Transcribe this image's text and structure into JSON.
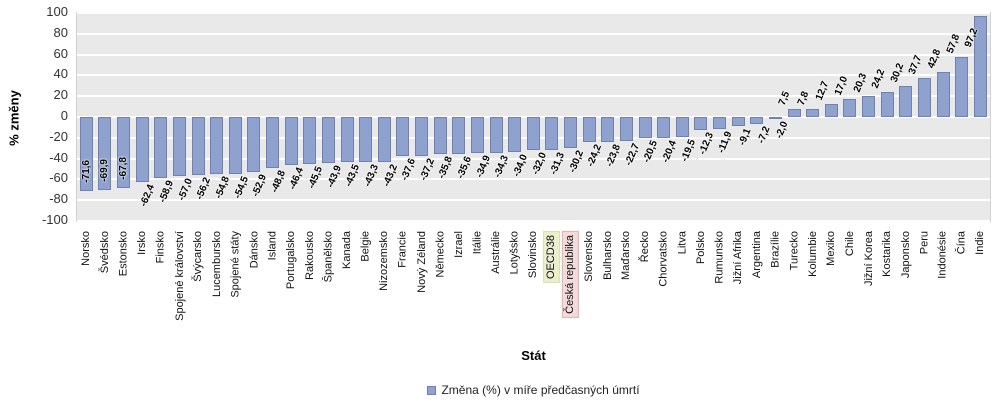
{
  "chart_data": {
    "type": "bar",
    "title": "",
    "xlabel": "Stát",
    "ylabel": "% změny",
    "ylim": [
      -100,
      100
    ],
    "yticks": [
      100,
      80,
      60,
      40,
      20,
      0,
      -20,
      -40,
      -60,
      -80,
      -100
    ],
    "grid": true,
    "legend": [
      "Změna (%) v míře předčasných úmrtí"
    ],
    "legend_position": "bottom",
    "categories": [
      "Norsko",
      "Švédsko",
      "Estonsko",
      "Irsko",
      "Finsko",
      "Spojené království",
      "Švýcarsko",
      "Lucembursko",
      "Spojené státy",
      "Dánsko",
      "Island",
      "Portugalsko",
      "Rakousko",
      "Španělsko",
      "Kanada",
      "Belgie",
      "Nizozemsko",
      "Francie",
      "Nový Zéland",
      "Německo",
      "Izrael",
      "Itálie",
      "Austrálie",
      "Lotyšsko",
      "Slovinsko",
      "OECD38",
      "Česká republika",
      "Slovensko",
      "Bulharsko",
      "Maďarsko",
      "Řecko",
      "Chorvatsko",
      "Litva",
      "Polsko",
      "Rumunsko",
      "Jižní Afrika",
      "Argentina",
      "Brazílie",
      "Turecko",
      "Kolumbie",
      "Mexiko",
      "Chile",
      "Jižní Korea",
      "Kostarika",
      "Japonsko",
      "Peru",
      "Indonésie",
      "Čína",
      "Indie"
    ],
    "values": [
      -71.6,
      -69.9,
      -67.8,
      -62.4,
      -58.9,
      -57.0,
      -56.2,
      -54.8,
      -54.5,
      -52.9,
      -48.8,
      -46.4,
      -45.5,
      -43.9,
      -43.5,
      -43.3,
      -43.2,
      -37.6,
      -37.2,
      -35.8,
      -35.6,
      -34.9,
      -34.3,
      -34.0,
      -32.0,
      -31.3,
      -30.2,
      -24.2,
      -23.8,
      -22.7,
      -20.5,
      -20.4,
      -19.5,
      -12.3,
      -11.9,
      -9.1,
      -7.2,
      -2.0,
      7.5,
      7.8,
      12.7,
      17.0,
      20.3,
      24.2,
      30.2,
      37.7,
      42.8,
      57.8,
      97.2
    ],
    "value_labels": [
      "-71,6",
      "-69,9",
      "-67,8",
      "-62,4",
      "-58,9",
      "-57,0",
      "-56,2",
      "-54,8",
      "-54,5",
      "-52,9",
      "-48,8",
      "-46,4",
      "-45,5",
      "-43,9",
      "-43,5",
      "-43,3",
      "-43,2",
      "-37,6",
      "-37,2",
      "-35,8",
      "-35,6",
      "-34,9",
      "-34,3",
      "-34,0",
      "-32,0",
      "-31,3",
      "-30,2",
      "-24,2",
      "-23,8",
      "-22,7",
      "-20,5",
      "-20,4",
      "-19,5",
      "-12,3",
      "-11,9",
      "-9,1",
      "-7,2",
      "-2,0",
      "7,5",
      "7,8",
      "12,7",
      "17,0",
      "20,3",
      "24,2",
      "30,2",
      "37,7",
      "42,8",
      "57,8",
      "97,2"
    ],
    "inside_label_indices": [
      0,
      1,
      2,
      48
    ],
    "highlights": [
      {
        "index": 25,
        "category": "OECD38",
        "bg": "#ECEFCE",
        "border": "#DBE0AC"
      },
      {
        "index": 26,
        "category": "Česká republika",
        "bg": "#F3DBDB",
        "border": "#E4B0B0"
      }
    ],
    "colors": {
      "bar": "#8EA2CD",
      "bar_border": "#6F81B2",
      "plot_bg": "#E9E9E9",
      "gridline": "#FFFFFF"
    }
  }
}
